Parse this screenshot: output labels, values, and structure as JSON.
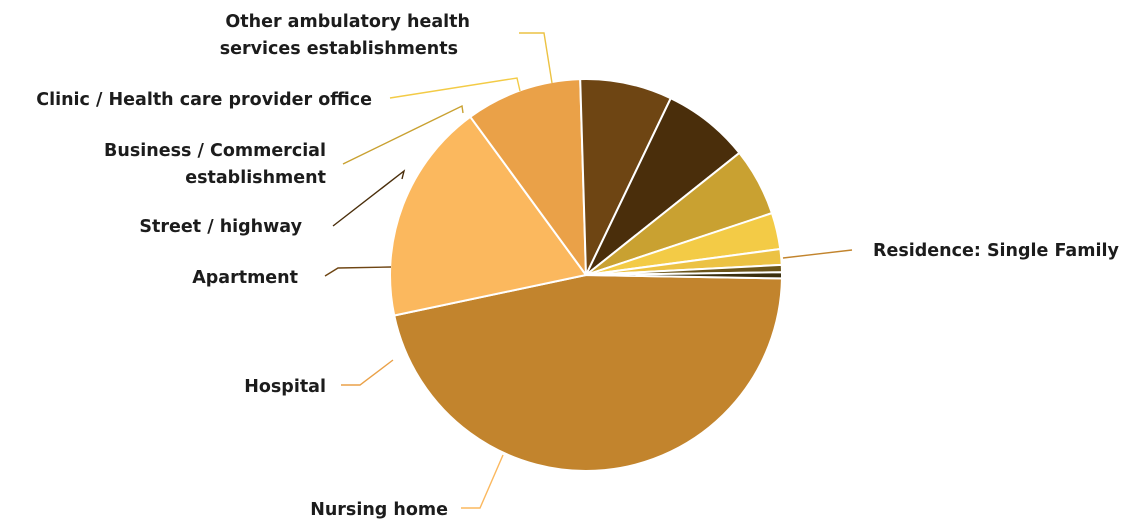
{
  "chart_data": {
    "type": "pie",
    "title": "",
    "legend": "none",
    "slices": [
      {
        "label": "Residence: Single Family",
        "value": 46.5,
        "color": "#c2842d"
      },
      {
        "label": "Nursing home",
        "value": 18.3,
        "color": "#fbb85e"
      },
      {
        "label": "Hospital",
        "value": 9.6,
        "color": "#eaa148"
      },
      {
        "label": "Apartment",
        "value": 7.6,
        "color": "#6e4513"
      },
      {
        "label": "Street / highway",
        "value": 7.2,
        "color": "#4a2e0b"
      },
      {
        "label": "Business / Commercial establishment",
        "value": 5.6,
        "color": "#c9a131"
      },
      {
        "label": "Clinic / Health care provider office",
        "value": 3.0,
        "color": "#f3cb46"
      },
      {
        "label": "Other ambulatory health services establishments",
        "value": 1.3,
        "color": "#ecc243"
      },
      {
        "label": "",
        "value": 0.6,
        "color": "#6a5419"
      },
      {
        "label": "",
        "value": 0.5,
        "color": "#3b2f0f"
      }
    ]
  }
}
